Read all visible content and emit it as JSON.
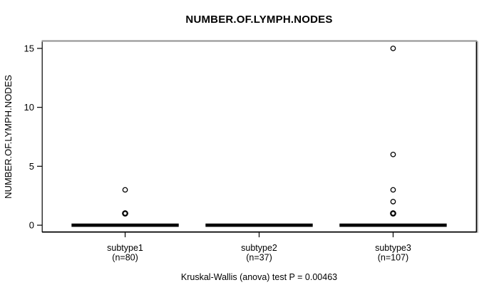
{
  "title": "NUMBER.OF.LYMPH.NODES",
  "y_axis_label": "NUMBER.OF.LYMPH.NODES",
  "annotation": "Kruskal-Wallis (anova) test P = 0.00463",
  "colors": {
    "foreground": "#000000",
    "background": "#ffffff",
    "frame_top": "#9b9b9b",
    "frame_side_shadow": "#ababab"
  },
  "chart_data": {
    "type": "boxplot",
    "title": "NUMBER.OF.LYMPH.NODES",
    "xlabel": "",
    "ylabel": "NUMBER.OF.LYMPH.NODES",
    "ylim": [
      0,
      15
    ],
    "yticks": [
      0,
      5,
      10,
      15
    ],
    "grid": false,
    "legend": null,
    "annotation": "Kruskal-Wallis (anova) test P = 0.00463",
    "groups": [
      {
        "label": "subtype1",
        "sublabel": "(n=80)",
        "n": 80,
        "stats": {
          "whisker_low": 0,
          "q1": 0,
          "median": 0,
          "q3": 0,
          "whisker_high": 0
        },
        "outliers": [
          {
            "value": 3,
            "emphasis": "normal"
          },
          {
            "value": 1,
            "emphasis": "bold"
          }
        ]
      },
      {
        "label": "subtype2",
        "sublabel": "(n=37)",
        "n": 37,
        "stats": {
          "whisker_low": 0,
          "q1": 0,
          "median": 0,
          "q3": 0,
          "whisker_high": 0
        },
        "outliers": []
      },
      {
        "label": "subtype3",
        "sublabel": "(n=107)",
        "n": 107,
        "stats": {
          "whisker_low": 0,
          "q1": 0,
          "median": 0,
          "q3": 0,
          "whisker_high": 0
        },
        "outliers": [
          {
            "value": 15,
            "emphasis": "normal"
          },
          {
            "value": 6,
            "emphasis": "normal"
          },
          {
            "value": 3,
            "emphasis": "normal"
          },
          {
            "value": 2,
            "emphasis": "normal"
          },
          {
            "value": 1,
            "emphasis": "bold"
          }
        ]
      }
    ]
  }
}
